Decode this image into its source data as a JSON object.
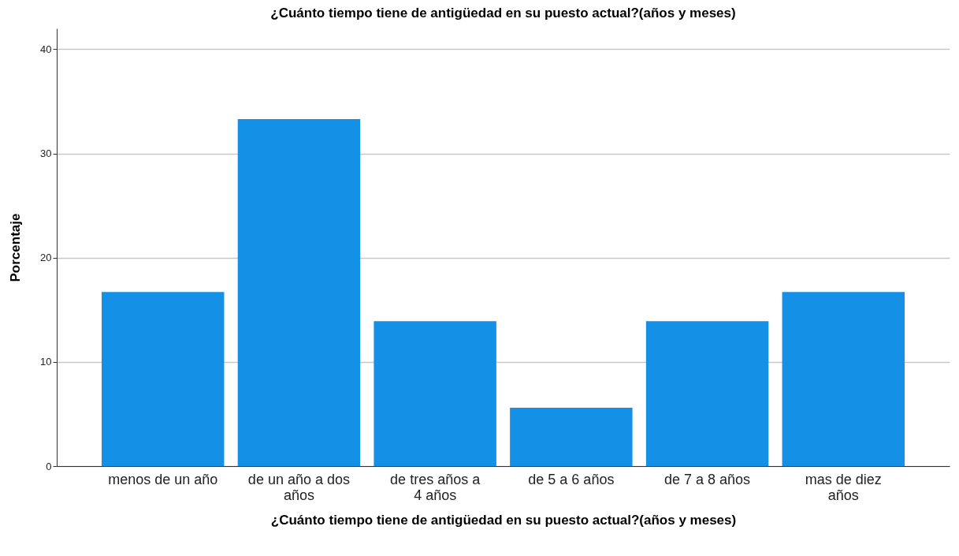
{
  "chart_data": {
    "type": "bar",
    "title": "¿Cuánto tiempo tiene de antigüedad en su puesto actual?(años y meses)",
    "xlabel": "¿Cuánto tiempo tiene de antigüedad en su puesto actual?(años y meses)",
    "ylabel": "Porcentaje",
    "categories": [
      "menos de un año",
      "de un año a dos años",
      "de tres años a 4 años",
      "de 5 a 6 años",
      "de 7 a 8 años",
      "mas de diez años"
    ],
    "values": [
      16.7,
      33.3,
      13.9,
      5.6,
      13.9,
      16.7
    ],
    "color": "#1490e6",
    "ylim": [
      0,
      42
    ],
    "yticks": [
      0,
      10,
      20,
      30,
      40
    ],
    "grid": "y"
  }
}
